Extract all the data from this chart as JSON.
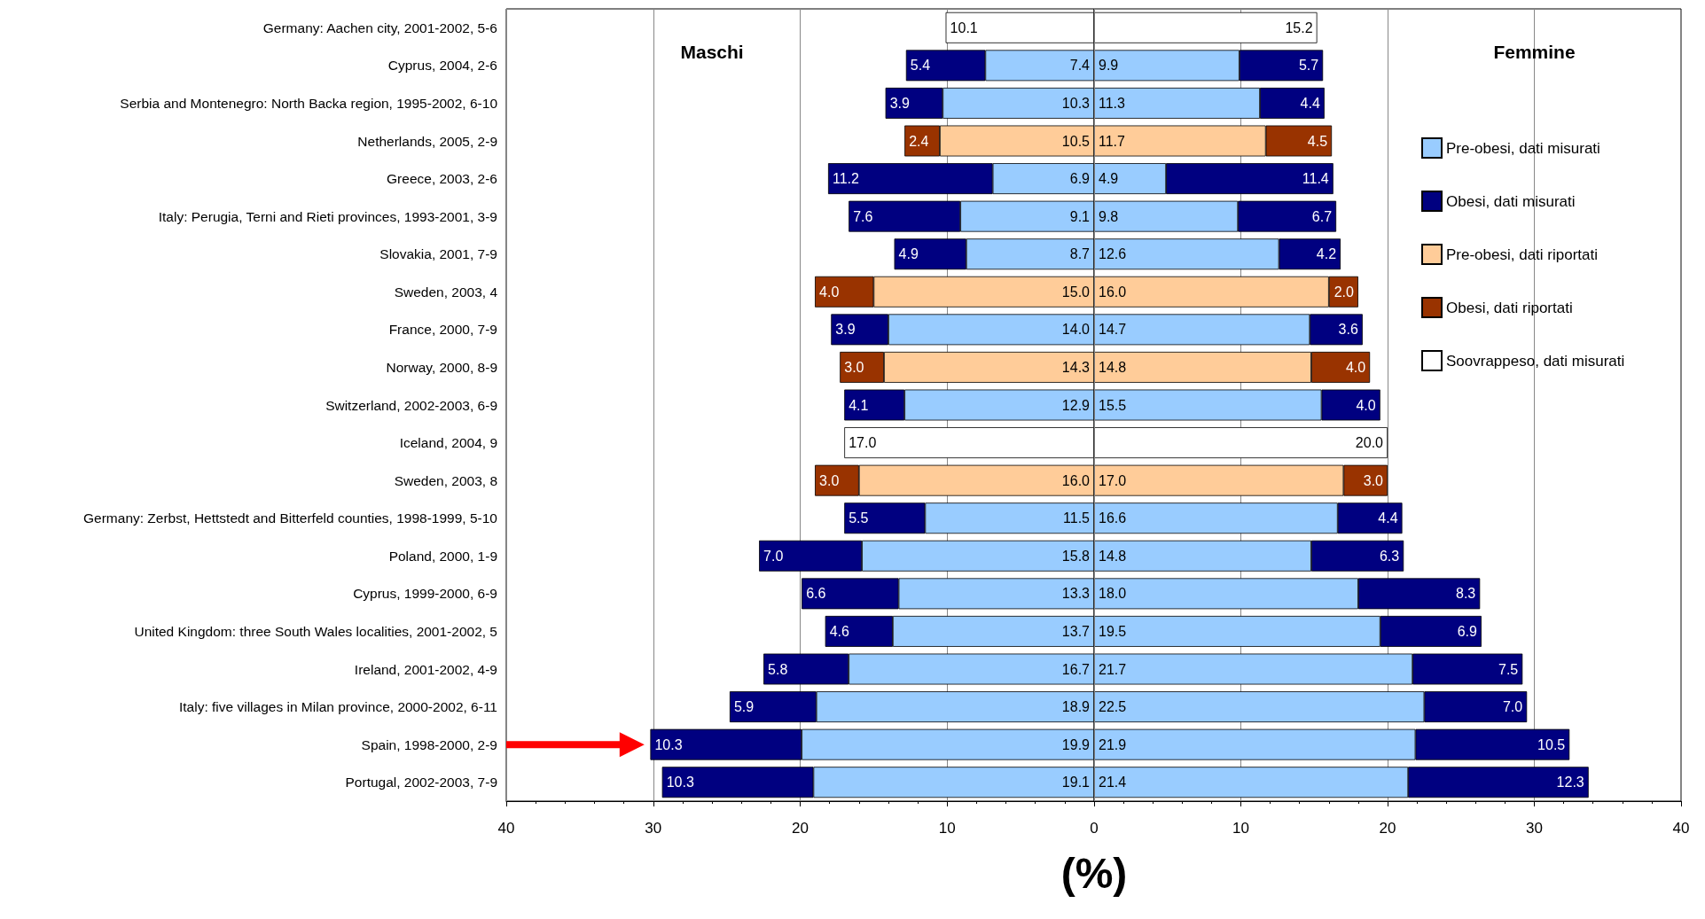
{
  "chart_data": [
    {
      "type": "bar",
      "orientation": "horizontal",
      "stacked": true,
      "xlabel": "(%)",
      "annotations": [
        "Maschi"
      ],
      "categories": [
        "Germany: Aachen city, 2001-2002, 5-6",
        "Cyprus, 2004, 2-6",
        "Serbia and Montenegro: North Backa region, 1995-2002, 6-10",
        "Netherlands, 2005, 2-9",
        "Greece, 2003, 2-6",
        "Italy: Perugia, Terni and Rieti provinces, 1993-2001, 3-9",
        "Slovakia, 2001, 7-9",
        "Sweden, 2003, 4",
        "France, 2000, 7-9",
        "Norway, 2000, 8-9",
        "Switzerland, 2002-2003, 6-9",
        "Iceland, 2004, 9",
        "Sweden, 2003, 8",
        "Germany: Zerbst, Hettstedt and Bitterfeld counties, 1998-1999, 5-10",
        "Poland, 2000, 1-9",
        "Cyprus, 1999-2000, 6-9",
        "United Kingdom: three South Wales localities, 2001-2002, 5",
        "Ireland, 2001-2002, 4-9",
        "Italy: five villages in Milan province, 2000-2002, 6-11",
        "Spain, 1998-2000, 2-9",
        "Portugal, 2002-2003, 7-9"
      ],
      "xlim": [
        40,
        0
      ],
      "xticks": [
        40,
        30,
        20,
        10,
        0
      ],
      "grid": "x",
      "series": [
        {
          "color": "#99ccff",
          "values": [
            null,
            7.4,
            10.3,
            null,
            6.9,
            9.1,
            8.7,
            null,
            14.0,
            null,
            12.9,
            null,
            null,
            11.5,
            15.8,
            13.3,
            13.7,
            16.7,
            18.9,
            19.9,
            19.1
          ],
          "value_labels": [
            null,
            "7.4",
            "10.3",
            null,
            "6.9",
            "9.1",
            "8.7",
            null,
            "14.0",
            null,
            "12.9",
            null,
            null,
            "11.5",
            "15.8",
            "13.3",
            "13.7",
            "16.7",
            "18.9",
            "19.9",
            "19.1"
          ]
        },
        {
          "color": "#000080",
          "values": [
            null,
            5.4,
            3.9,
            null,
            11.2,
            7.6,
            4.9,
            null,
            3.9,
            null,
            4.1,
            null,
            null,
            5.5,
            7.0,
            6.6,
            4.6,
            5.8,
            5.9,
            10.3,
            10.3
          ],
          "value_labels": [
            null,
            "5.4",
            "3.9",
            null,
            "11.2",
            "7.6",
            "4.9",
            null,
            "3.9",
            null,
            "4.1",
            null,
            null,
            "5.5",
            "7.0",
            "6.6",
            "4.6",
            "5.8",
            "5.9",
            "10.3",
            "10.3"
          ]
        },
        {
          "color": "#ffcc99",
          "values": [
            null,
            null,
            null,
            10.5,
            null,
            null,
            null,
            15.0,
            null,
            14.3,
            null,
            null,
            16.0,
            null,
            null,
            null,
            null,
            null,
            null,
            null,
            null
          ],
          "value_labels": [
            null,
            null,
            null,
            "10.5",
            null,
            null,
            null,
            "15.0",
            null,
            "14.3",
            null,
            null,
            "16.0",
            null,
            null,
            null,
            null,
            null,
            null,
            null,
            null
          ]
        },
        {
          "color": "#993300",
          "values": [
            null,
            null,
            null,
            2.4,
            null,
            null,
            null,
            4.0,
            null,
            3.0,
            null,
            null,
            3.0,
            null,
            null,
            null,
            null,
            null,
            null,
            null,
            null
          ],
          "value_labels": [
            null,
            null,
            null,
            "2.4",
            null,
            null,
            null,
            "4.0",
            null,
            "3.0",
            null,
            null,
            "3.0",
            null,
            null,
            null,
            null,
            null,
            null,
            null,
            null
          ]
        },
        {
          "color": "#ffffff",
          "values": [
            10.1,
            null,
            null,
            null,
            null,
            null,
            null,
            null,
            null,
            null,
            null,
            17.0,
            null,
            null,
            null,
            null,
            null,
            null,
            null,
            null,
            null
          ],
          "value_labels": [
            "10.1",
            null,
            null,
            null,
            null,
            null,
            null,
            null,
            null,
            null,
            null,
            "17.0",
            null,
            null,
            null,
            null,
            null,
            null,
            null,
            null,
            null
          ]
        }
      ]
    },
    {
      "type": "bar",
      "orientation": "horizontal",
      "stacked": true,
      "tick_labels": "x",
      "annotations": [
        "Femmine"
      ],
      "xlim": [
        0,
        40
      ],
      "xticks": [
        {
          "value": 0,
          "label": null
        },
        10,
        20,
        30,
        40
      ],
      "grid": "x",
      "legend": "right",
      "series": [
        {
          "name": "Pre-obesi, dati misurati",
          "color": "#99ccff",
          "values": [
            null,
            9.9,
            11.3,
            null,
            4.9,
            9.8,
            12.6,
            null,
            14.7,
            null,
            15.5,
            null,
            null,
            16.6,
            14.8,
            18.0,
            19.5,
            21.7,
            22.5,
            21.9,
            21.4
          ],
          "value_labels": [
            null,
            "9.9",
            "11.3",
            null,
            "4.9",
            "9.8",
            "12.6",
            null,
            "14.7",
            null,
            "15.5",
            null,
            null,
            "16.6",
            "14.8",
            "18.0",
            "19.5",
            "21.7",
            "22.5",
            "21.9",
            "21.4"
          ]
        },
        {
          "name": "Obesi, dati misurati",
          "color": "#000080",
          "values": [
            null,
            5.7,
            4.4,
            null,
            11.4,
            6.7,
            4.2,
            null,
            3.6,
            null,
            4.0,
            null,
            null,
            4.4,
            6.3,
            8.3,
            6.9,
            7.5,
            7.0,
            10.5,
            12.3
          ],
          "value_labels": [
            null,
            "5.7",
            "4.4",
            null,
            "11.4",
            "6.7",
            "4.2",
            null,
            "3.6",
            null,
            "4.0",
            null,
            null,
            "4.4",
            "6.3",
            "8.3",
            "6.9",
            "7.5",
            "7.0",
            "10.5",
            "12.3"
          ]
        },
        {
          "name": "Pre-obesi, dati riportati",
          "color": "#ffcc99",
          "values": [
            null,
            null,
            null,
            11.7,
            null,
            null,
            null,
            16.0,
            null,
            14.8,
            null,
            null,
            17.0,
            null,
            null,
            null,
            null,
            null,
            null,
            null,
            null
          ],
          "value_labels": [
            null,
            null,
            null,
            "11.7",
            null,
            null,
            null,
            "16.0",
            null,
            "14.8",
            null,
            null,
            "17.0",
            null,
            null,
            null,
            null,
            null,
            null,
            null,
            null
          ]
        },
        {
          "name": "Obesi, dati riportati",
          "color": "#993300",
          "values": [
            null,
            null,
            null,
            4.5,
            null,
            null,
            null,
            2.0,
            null,
            4.0,
            null,
            null,
            3.0,
            null,
            null,
            null,
            null,
            null,
            null,
            null,
            null
          ],
          "value_labels": [
            null,
            null,
            null,
            "4.5",
            null,
            null,
            null,
            "2.0",
            null,
            "4.0",
            null,
            null,
            "3.0",
            null,
            null,
            null,
            null,
            null,
            null,
            null,
            null
          ]
        },
        {
          "name": "Soovrappeso, dati misurati",
          "color": "#ffffff",
          "values": [
            15.2,
            null,
            null,
            null,
            null,
            null,
            null,
            null,
            null,
            null,
            null,
            20.0,
            null,
            null,
            null,
            null,
            null,
            null,
            null,
            null,
            null
          ],
          "value_labels": [
            "15.2",
            null,
            null,
            null,
            null,
            null,
            null,
            null,
            null,
            null,
            null,
            "20.0",
            null,
            null,
            null,
            null,
            null,
            null,
            null,
            null,
            null
          ]
        }
      ]
    }
  ]
}
